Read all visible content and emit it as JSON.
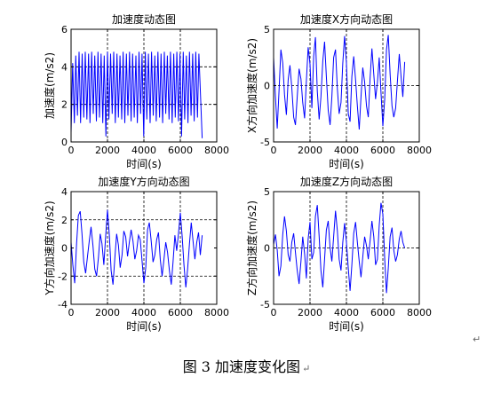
{
  "caption": "图 3  加速度变化图",
  "return_mark": "↵",
  "chart_data": [
    {
      "type": "line",
      "title": "加速度动态图",
      "xlabel": "时间(s)",
      "ylabel": "加速度(m/s2)",
      "xlim": [
        0,
        8000
      ],
      "ylim": [
        0,
        6
      ],
      "xticks": [
        0,
        2000,
        4000,
        6000,
        8000
      ],
      "yticks": [
        0,
        2,
        4,
        6
      ],
      "grid_x": [
        2000,
        4000,
        6000
      ],
      "grid_y": [
        2,
        4
      ],
      "grid": "dashed",
      "color": "#0000ff",
      "series": [
        {
          "x": [
            0,
            90,
            180,
            260,
            350,
            440,
            520,
            610,
            700,
            780,
            870,
            960,
            1040,
            1130,
            1220,
            1300,
            1390,
            1480,
            1560,
            1650,
            1740,
            1820,
            1910,
            2000,
            2080,
            2170,
            2260,
            2340,
            2430,
            2520,
            2600,
            2690,
            2780,
            2860,
            2950,
            3040,
            3120,
            3210,
            3300,
            3380,
            3470,
            3560,
            3640,
            3730,
            3820,
            3900,
            3990,
            4080,
            4160,
            4250,
            4340,
            4420,
            4510,
            4600,
            4680,
            4770,
            4860,
            4940,
            5030,
            5120,
            5200,
            5290,
            5380,
            5460,
            5550,
            5640,
            5720,
            5810,
            5900,
            5980,
            6070,
            6160,
            6240,
            6330,
            6420,
            6500,
            6590,
            6680,
            6760,
            6850,
            6940,
            7020,
            7110,
            7200
          ],
          "y": [
            0.5,
            4.2,
            1.0,
            4.6,
            1.4,
            4.8,
            1.0,
            4.7,
            1.3,
            4.8,
            1.2,
            4.7,
            1.0,
            4.8,
            1.5,
            4.6,
            1.1,
            4.8,
            1.3,
            4.7,
            1.0,
            4.6,
            0.3,
            4.8,
            1.2,
            4.7,
            1.5,
            4.8,
            1.0,
            4.7,
            1.3,
            4.6,
            1.2,
            4.8,
            1.0,
            4.7,
            1.4,
            4.8,
            1.1,
            4.7,
            1.3,
            4.6,
            1.0,
            4.8,
            1.5,
            4.7,
            0.3,
            4.8,
            1.2,
            4.7,
            1.0,
            4.8,
            1.4,
            4.6,
            1.1,
            4.8,
            1.3,
            4.7,
            1.0,
            4.8,
            1.5,
            4.6,
            1.2,
            4.8,
            1.0,
            4.7,
            1.3,
            4.8,
            1.1,
            4.7,
            0.3,
            4.8,
            1.2,
            4.6,
            1.0,
            4.8,
            1.4,
            4.7,
            1.1,
            4.8,
            1.3,
            4.7,
            2.4,
            0.2
          ]
        }
      ]
    },
    {
      "type": "line",
      "title": "加速度X方向动态图",
      "xlabel": "时间(s)",
      "ylabel": "X方向加速度(m/s2)",
      "xlim": [
        0,
        8000
      ],
      "ylim": [
        -5,
        5
      ],
      "xticks": [
        0,
        2000,
        4000,
        6000,
        8000
      ],
      "yticks": [
        -5,
        0,
        5
      ],
      "grid_x": [
        2000,
        4000,
        6000
      ],
      "grid_y": [
        0
      ],
      "grid": "dashed",
      "color": "#0000ff",
      "series": [
        {
          "x": [
            0,
            100,
            200,
            300,
            400,
            500,
            600,
            700,
            800,
            900,
            1000,
            1100,
            1200,
            1300,
            1400,
            1500,
            1600,
            1700,
            1800,
            1900,
            2000,
            2100,
            2200,
            2300,
            2400,
            2500,
            2600,
            2700,
            2800,
            2900,
            3000,
            3100,
            3200,
            3300,
            3400,
            3500,
            3600,
            3700,
            3800,
            3900,
            4000,
            4100,
            4200,
            4300,
            4400,
            4500,
            4600,
            4700,
            4800,
            4900,
            5000,
            5100,
            5200,
            5300,
            5400,
            5500,
            5600,
            5700,
            5800,
            5900,
            6000,
            6100,
            6200,
            6300,
            6400,
            6500,
            6600,
            6700,
            6800,
            6900,
            7000,
            7100,
            7200
          ],
          "y": [
            2.5,
            -1.0,
            -3.8,
            -0.5,
            3.2,
            2.0,
            -0.8,
            -2.6,
            0.5,
            1.8,
            -0.2,
            -2.8,
            -3.5,
            -1.0,
            1.5,
            0.6,
            -1.5,
            -2.9,
            0.4,
            3.4,
            1.9,
            -2.0,
            2.6,
            4.3,
            -0.5,
            -3.0,
            -1.0,
            2.2,
            3.9,
            0.8,
            -2.2,
            -3.5,
            -1.0,
            2.5,
            3.2,
            -0.3,
            -2.5,
            -1.5,
            2.0,
            4.4,
            2.0,
            -2.5,
            -3.2,
            0.8,
            2.6,
            0.5,
            -1.8,
            -3.9,
            -1.0,
            1.6,
            0.3,
            -1.8,
            -2.8,
            0.6,
            3.3,
            1.0,
            -1.2,
            0.3,
            2.5,
            -0.6,
            -3.6,
            -1.2,
            3.2,
            4.5,
            1.0,
            -1.8,
            -2.8,
            -2.0,
            0.4,
            2.8,
            0.8,
            -1.0,
            2.1
          ]
        }
      ]
    },
    {
      "type": "line",
      "title": "加速度Y方向动态图",
      "xlabel": "时间(s)",
      "ylabel": "Y方向加速度(m/s2)",
      "xlim": [
        0,
        8000
      ],
      "ylim": [
        -4,
        4
      ],
      "xticks": [
        0,
        2000,
        4000,
        6000,
        8000
      ],
      "yticks": [
        -4,
        -2,
        0,
        2,
        4
      ],
      "grid_x": [
        2000,
        4000,
        6000
      ],
      "grid_y": [
        -2,
        2
      ],
      "grid": "dashed",
      "color": "#0000ff",
      "series": [
        {
          "x": [
            0,
            100,
            200,
            300,
            400,
            500,
            600,
            700,
            800,
            900,
            1000,
            1100,
            1200,
            1300,
            1400,
            1500,
            1600,
            1700,
            1800,
            1900,
            2000,
            2100,
            2200,
            2300,
            2400,
            2500,
            2600,
            2700,
            2800,
            2900,
            3000,
            3100,
            3200,
            3300,
            3400,
            3500,
            3600,
            3700,
            3800,
            3900,
            4000,
            4100,
            4200,
            4300,
            4400,
            4500,
            4600,
            4700,
            4800,
            4900,
            5000,
            5100,
            5200,
            5300,
            5400,
            5500,
            5600,
            5700,
            5800,
            5900,
            6000,
            6100,
            6200,
            6300,
            6400,
            6500,
            6600,
            6700,
            6800,
            6900,
            7000,
            7100,
            7200
          ],
          "y": [
            0.4,
            -1.2,
            -2.5,
            0.3,
            2.3,
            2.6,
            1.0,
            -1.0,
            -1.8,
            -0.6,
            0.5,
            1.5,
            0.2,
            -1.5,
            -2.0,
            -0.7,
            1.0,
            0.3,
            -1.2,
            0.8,
            2.7,
            0.9,
            -1.6,
            -2.6,
            -0.8,
            1.0,
            0.2,
            -1.4,
            -0.5,
            1.2,
            0.8,
            -0.6,
            0.4,
            1.3,
            0.5,
            -0.8,
            -0.2,
            0.9,
            0.6,
            -0.9,
            -2.5,
            -1.4,
            1.3,
            1.8,
            0.5,
            -1.0,
            -0.5,
            0.6,
            1.1,
            -0.8,
            -2.0,
            -0.8,
            0.4,
            -0.3,
            -1.6,
            -2.6,
            -1.0,
            0.9,
            -0.2,
            1.0,
            2.5,
            0.8,
            -1.2,
            -2.8,
            -1.5,
            0.3,
            1.8,
            0.5,
            -0.8,
            0.4,
            1.1,
            -0.5,
            0.9
          ]
        }
      ]
    },
    {
      "type": "line",
      "title": "加速度Z方向动态图",
      "xlabel": "时间(s)",
      "ylabel": "Z方向加速度(m/s2)",
      "xlim": [
        0,
        8000
      ],
      "ylim": [
        -5,
        5
      ],
      "xticks": [
        0,
        2000,
        4000,
        6000,
        8000
      ],
      "yticks": [
        -5,
        0,
        5
      ],
      "grid_x": [
        2000,
        4000,
        6000
      ],
      "grid_y": [
        0
      ],
      "grid": "dashed",
      "color": "#0000ff",
      "series": [
        {
          "x": [
            0,
            100,
            200,
            300,
            400,
            500,
            600,
            700,
            800,
            900,
            1000,
            1100,
            1200,
            1300,
            1400,
            1500,
            1600,
            1700,
            1800,
            1900,
            2000,
            2100,
            2200,
            2300,
            2400,
            2500,
            2600,
            2700,
            2800,
            2900,
            3000,
            3100,
            3200,
            3300,
            3400,
            3500,
            3600,
            3700,
            3800,
            3900,
            4000,
            4100,
            4200,
            4300,
            4400,
            4500,
            4600,
            4700,
            4800,
            4900,
            5000,
            5100,
            5200,
            5300,
            5400,
            5500,
            5600,
            5700,
            5800,
            5900,
            6000,
            6100,
            6200,
            6300,
            6400,
            6500,
            6600,
            6700,
            6800,
            6900,
            7000,
            7100,
            7200
          ],
          "y": [
            0.3,
            1.2,
            -0.2,
            -2.5,
            -1.6,
            1.2,
            2.8,
            1.5,
            -0.6,
            -1.2,
            0.5,
            1.3,
            -0.4,
            -2.0,
            -3.2,
            -1.2,
            1.0,
            -0.5,
            -2.7,
            0.8,
            2.3,
            -1.0,
            -0.4,
            2.8,
            3.8,
            1.0,
            -2.0,
            -3.5,
            -1.0,
            1.6,
            2.4,
            0.0,
            -1.2,
            1.0,
            3.3,
            1.5,
            -1.0,
            -2.0,
            0.5,
            2.2,
            0.5,
            -1.8,
            -3.8,
            -1.5,
            1.3,
            2.3,
            0.5,
            -1.2,
            -2.6,
            -0.8,
            1.0,
            0.2,
            -1.0,
            0.6,
            2.4,
            1.0,
            -1.5,
            -1.0,
            2.0,
            4.0,
            3.0,
            -1.0,
            -4.0,
            -1.8,
            1.0,
            1.8,
            -0.2,
            -1.2,
            -0.6,
            0.8,
            1.5,
            0.5,
            0.0
          ]
        }
      ]
    }
  ]
}
